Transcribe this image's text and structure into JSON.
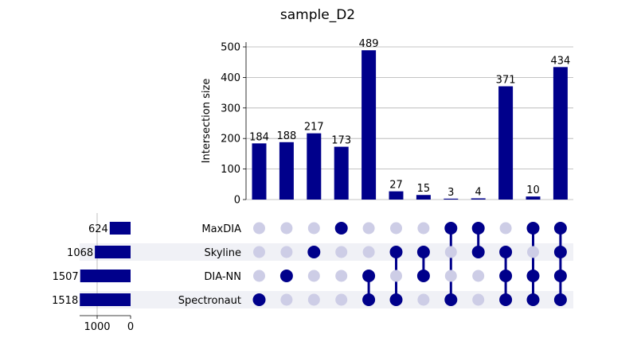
{
  "chart_data": {
    "type": "upset",
    "title": "sample_D2",
    "ylabel": "Intersection size",
    "ylim": [
      0,
      500
    ],
    "yticks": [
      0,
      100,
      200,
      300,
      400,
      500
    ],
    "grid": true,
    "bar_color": "#00008b",
    "dot_active_color": "#00008b",
    "dot_inactive_color": "#cdcde6",
    "stripe_color": "#f0f1f6",
    "sets": [
      {
        "name": "MaxDIA",
        "size": 624
      },
      {
        "name": "Skyline",
        "size": 1068
      },
      {
        "name": "DIA-NN",
        "size": 1507
      },
      {
        "name": "Spectronaut",
        "size": 1518
      }
    ],
    "set_size_ticks": [
      1000,
      0
    ],
    "intersections": [
      {
        "value": 184,
        "members": [
          "Spectronaut"
        ]
      },
      {
        "value": 188,
        "members": [
          "DIA-NN"
        ]
      },
      {
        "value": 217,
        "members": [
          "Skyline"
        ]
      },
      {
        "value": 173,
        "members": [
          "MaxDIA"
        ]
      },
      {
        "value": 489,
        "members": [
          "DIA-NN",
          "Spectronaut"
        ]
      },
      {
        "value": 27,
        "members": [
          "Skyline",
          "Spectronaut"
        ]
      },
      {
        "value": 15,
        "members": [
          "Skyline",
          "DIA-NN"
        ]
      },
      {
        "value": 3,
        "members": [
          "MaxDIA",
          "Spectronaut"
        ]
      },
      {
        "value": 4,
        "members": [
          "MaxDIA",
          "Skyline"
        ]
      },
      {
        "value": 371,
        "members": [
          "Skyline",
          "DIA-NN",
          "Spectronaut"
        ]
      },
      {
        "value": 10,
        "members": [
          "MaxDIA",
          "DIA-NN",
          "Spectronaut"
        ]
      },
      {
        "value": 434,
        "members": [
          "MaxDIA",
          "Skyline",
          "DIA-NN",
          "Spectronaut"
        ]
      }
    ]
  }
}
